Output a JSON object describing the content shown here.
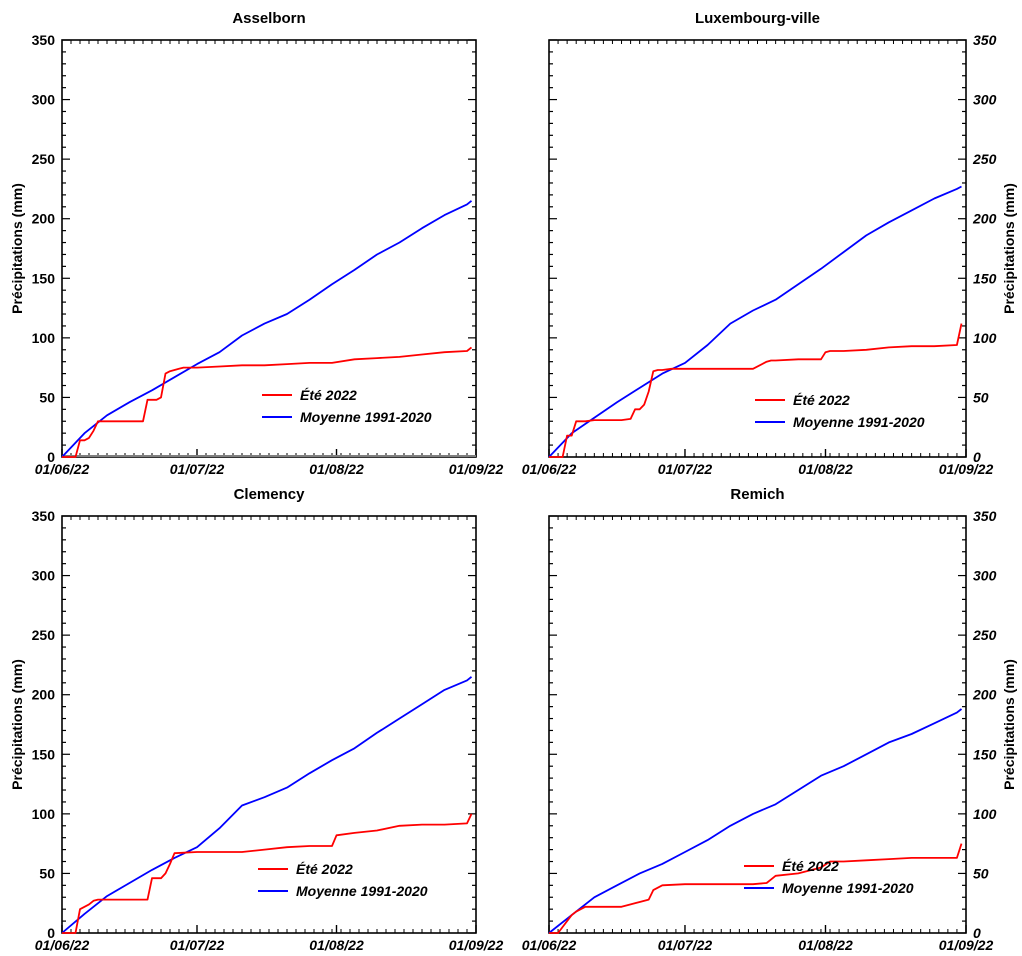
{
  "colors": {
    "ete": "#ff0000",
    "moyenne": "#0000ff",
    "axis": "#000000",
    "baseline": "#808080"
  },
  "chart_data": [
    {
      "type": "line",
      "title": "Asselborn",
      "ylabel": "Précipitations (mm)",
      "ylim": [
        0,
        350
      ],
      "yticks": [
        "0",
        "50",
        "100",
        "150",
        "200",
        "250",
        "300",
        "350"
      ],
      "xticks": [
        "01/06/22",
        "01/07/22",
        "01/08/22",
        "01/09/22"
      ],
      "xlim": [
        0,
        92
      ],
      "series": [
        {
          "name": "Été 2022",
          "x": [
            0,
            1,
            2,
            3,
            4,
            5,
            6,
            7,
            8,
            9,
            10,
            11,
            12,
            13,
            14,
            15,
            16,
            17,
            18,
            19,
            20,
            21,
            22,
            23,
            24,
            25,
            26,
            27,
            28,
            29,
            30,
            35,
            40,
            45,
            50,
            55,
            60,
            65,
            70,
            75,
            80,
            85,
            90,
            91
          ],
          "y": [
            0,
            0,
            0,
            0,
            14,
            14,
            16,
            22,
            30,
            30,
            30,
            30,
            30,
            30,
            30,
            30,
            30,
            30,
            30,
            48,
            48,
            48,
            50,
            70,
            72,
            73,
            74,
            75,
            75,
            75,
            75,
            76,
            77,
            77,
            78,
            79,
            79,
            82,
            83,
            84,
            86,
            88,
            89,
            92
          ]
        },
        {
          "name": "Moyenne 1991-2020",
          "x": [
            0,
            5,
            10,
            15,
            20,
            25,
            30,
            35,
            40,
            45,
            50,
            55,
            60,
            65,
            70,
            75,
            80,
            85,
            90,
            91
          ],
          "y": [
            0,
            20,
            35,
            46,
            56,
            67,
            78,
            88,
            102,
            112,
            120,
            132,
            145,
            157,
            170,
            180,
            192,
            203,
            212,
            215
          ]
        }
      ]
    },
    {
      "type": "line",
      "title": "Luxembourg-ville",
      "ylabel": "Précipitations (mm)",
      "ylim": [
        0,
        350
      ],
      "yticks": [
        "0",
        "50",
        "100",
        "150",
        "200",
        "250",
        "300",
        "350"
      ],
      "xticks": [
        "01/06/22",
        "01/07/22",
        "01/08/22",
        "01/09/22"
      ],
      "xlim": [
        0,
        92
      ],
      "series": [
        {
          "name": "Été 2022",
          "x": [
            0,
            1,
            2,
            3,
            4,
            5,
            6,
            7,
            8,
            10,
            12,
            14,
            16,
            18,
            19,
            20,
            21,
            22,
            23,
            24,
            25,
            27,
            30,
            35,
            40,
            45,
            48,
            49,
            50,
            55,
            60,
            61,
            62,
            65,
            70,
            75,
            80,
            85,
            90,
            91
          ],
          "y": [
            0,
            0,
            0,
            0,
            18,
            18,
            30,
            30,
            30,
            31,
            31,
            31,
            31,
            32,
            40,
            40,
            44,
            55,
            72,
            73,
            73,
            74,
            74,
            74,
            74,
            74,
            80,
            81,
            81,
            82,
            82,
            88,
            89,
            89,
            90,
            92,
            93,
            93,
            94,
            112
          ]
        },
        {
          "name": "Moyenne 1991-2020",
          "x": [
            0,
            5,
            10,
            15,
            20,
            25,
            30,
            35,
            40,
            45,
            50,
            55,
            60,
            65,
            70,
            75,
            80,
            85,
            90,
            91
          ],
          "y": [
            0,
            20,
            33,
            46,
            58,
            70,
            79,
            94,
            112,
            123,
            132,
            145,
            158,
            172,
            186,
            197,
            207,
            217,
            225,
            227
          ]
        }
      ]
    },
    {
      "type": "line",
      "title": "Clemency",
      "ylabel": "Précipitations (mm)",
      "ylim": [
        0,
        350
      ],
      "yticks": [
        "0",
        "50",
        "100",
        "150",
        "200",
        "250",
        "300",
        "350"
      ],
      "xticks": [
        "01/06/22",
        "01/07/22",
        "01/08/22",
        "01/09/22"
      ],
      "xlim": [
        0,
        92
      ],
      "series": [
        {
          "name": "Été 2022",
          "x": [
            0,
            1,
            2,
            3,
            4,
            5,
            6,
            7,
            8,
            10,
            15,
            16,
            17,
            18,
            19,
            20,
            21,
            22,
            23,
            24,
            25,
            30,
            35,
            40,
            45,
            50,
            55,
            60,
            61,
            65,
            70,
            75,
            80,
            85,
            90,
            91
          ],
          "y": [
            0,
            0,
            0,
            0,
            20,
            22,
            24,
            27,
            28,
            28,
            28,
            28,
            28,
            28,
            28,
            46,
            46,
            46,
            50,
            58,
            67,
            68,
            68,
            68,
            70,
            72,
            73,
            73,
            82,
            84,
            86,
            90,
            91,
            91,
            92,
            100
          ]
        },
        {
          "name": "Moyenne 1991-2020",
          "x": [
            0,
            5,
            10,
            15,
            20,
            25,
            30,
            35,
            40,
            45,
            50,
            55,
            60,
            65,
            70,
            75,
            80,
            85,
            90,
            91
          ],
          "y": [
            0,
            16,
            31,
            42,
            53,
            63,
            72,
            88,
            107,
            114,
            122,
            134,
            145,
            155,
            168,
            180,
            192,
            204,
            212,
            215
          ]
        }
      ]
    },
    {
      "type": "line",
      "title": "Remich",
      "ylabel": "Précipitations (mm)",
      "ylim": [
        0,
        350
      ],
      "yticks": [
        "0",
        "50",
        "100",
        "150",
        "200",
        "250",
        "300",
        "350"
      ],
      "xticks": [
        "01/06/22",
        "01/07/22",
        "01/08/22",
        "01/09/22"
      ],
      "xlim": [
        0,
        92
      ],
      "series": [
        {
          "name": "Été 2022",
          "x": [
            0,
            1,
            2,
            3,
            4,
            5,
            6,
            7,
            8,
            10,
            12,
            14,
            16,
            18,
            20,
            22,
            23,
            24,
            25,
            30,
            35,
            40,
            45,
            48,
            49,
            50,
            55,
            60,
            62,
            65,
            70,
            75,
            80,
            85,
            90,
            91
          ],
          "y": [
            0,
            0,
            0,
            5,
            10,
            15,
            18,
            20,
            22,
            22,
            22,
            22,
            22,
            24,
            26,
            28,
            36,
            38,
            40,
            41,
            41,
            41,
            41,
            42,
            45,
            48,
            50,
            55,
            60,
            60,
            61,
            62,
            63,
            63,
            63,
            75
          ]
        },
        {
          "name": "Moyenne 1991-2020",
          "x": [
            0,
            5,
            10,
            15,
            20,
            25,
            30,
            35,
            40,
            45,
            50,
            55,
            60,
            65,
            70,
            75,
            80,
            85,
            90,
            91
          ],
          "y": [
            0,
            15,
            30,
            40,
            50,
            58,
            68,
            78,
            90,
            100,
            108,
            120,
            132,
            140,
            150,
            160,
            167,
            176,
            185,
            188
          ]
        }
      ]
    }
  ]
}
